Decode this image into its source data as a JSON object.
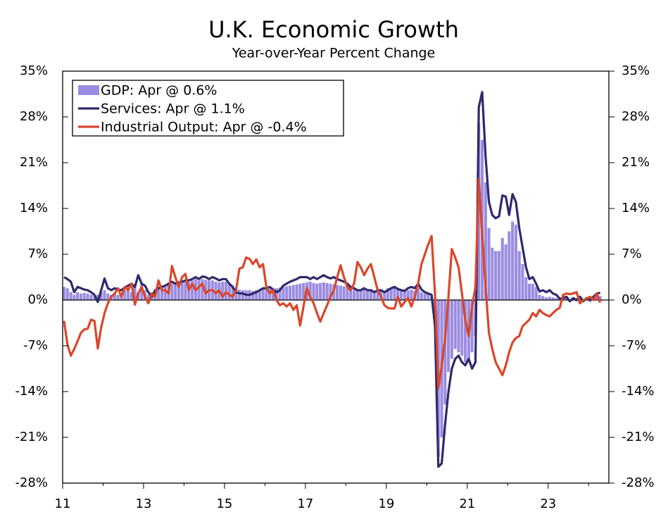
{
  "chart_data": {
    "type": "bar",
    "title": "U.K. Economic Growth",
    "subtitle": "Year-over-Year Percent Change",
    "x": [
      11,
      11.083,
      11.167,
      11.25,
      11.333,
      11.417,
      11.5,
      11.583,
      11.667,
      11.75,
      11.833,
      11.917,
      12,
      12.083,
      12.167,
      12.25,
      12.333,
      12.417,
      12.5,
      12.583,
      12.667,
      12.75,
      12.833,
      12.917,
      13,
      13.083,
      13.167,
      13.25,
      13.333,
      13.417,
      13.5,
      13.583,
      13.667,
      13.75,
      13.833,
      13.917,
      14,
      14.083,
      14.167,
      14.25,
      14.333,
      14.417,
      14.5,
      14.583,
      14.667,
      14.75,
      14.833,
      14.917,
      15,
      15.083,
      15.167,
      15.25,
      15.333,
      15.417,
      15.5,
      15.583,
      15.667,
      15.75,
      15.833,
      15.917,
      16,
      16.083,
      16.167,
      16.25,
      16.333,
      16.417,
      16.5,
      16.583,
      16.667,
      16.75,
      16.833,
      16.917,
      17,
      17.083,
      17.167,
      17.25,
      17.333,
      17.417,
      17.5,
      17.583,
      17.667,
      17.75,
      17.833,
      17.917,
      18,
      18.083,
      18.167,
      18.25,
      18.333,
      18.417,
      18.5,
      18.583,
      18.667,
      18.75,
      18.833,
      18.917,
      19,
      19.083,
      19.167,
      19.25,
      19.333,
      19.417,
      19.5,
      19.583,
      19.667,
      19.75,
      19.833,
      19.917,
      20,
      20.083,
      20.167,
      20.25,
      20.333,
      20.417,
      20.5,
      20.583,
      20.667,
      20.75,
      20.833,
      20.917,
      21,
      21.083,
      21.167,
      21.25,
      21.333,
      21.417,
      21.5,
      21.583,
      21.667,
      21.75,
      21.833,
      21.917,
      22,
      22.083,
      22.167,
      22.25,
      22.333,
      22.417,
      22.5,
      22.583,
      22.667,
      22.75,
      22.833,
      22.917,
      23,
      23.083,
      23.167,
      23.25,
      23.333,
      23.417,
      23.5,
      23.583,
      23.667,
      23.75,
      23.833,
      23.917,
      24,
      24.083,
      24.167,
      24.25
    ],
    "series": [
      {
        "name": "GDP: Apr @ 0.6%",
        "type": "bar",
        "color": "#9b8ce0",
        "values": [
          2.0,
          1.8,
          1.2,
          0.8,
          1.2,
          1.0,
          1.1,
          1.0,
          0.8,
          0.6,
          0.8,
          1.2,
          1.5,
          1.0,
          0.8,
          1.0,
          0.8,
          0.5,
          1.5,
          1.8,
          1.2,
          2.0,
          1.2,
          2.5,
          1.5,
          0.8,
          0.5,
          1.5,
          1.8,
          2.0,
          2.0,
          2.3,
          2.5,
          2.5,
          2.6,
          2.8,
          2.8,
          2.8,
          3.0,
          3.2,
          3.0,
          3.2,
          3.1,
          3.0,
          3.0,
          2.8,
          2.7,
          2.8,
          2.8,
          2.5,
          2.2,
          1.8,
          1.6,
          1.5,
          1.5,
          1.5,
          1.4,
          1.5,
          1.6,
          1.7,
          1.6,
          1.7,
          1.8,
          1.8,
          1.9,
          2.0,
          2.1,
          2.2,
          2.3,
          2.4,
          2.5,
          2.6,
          2.7,
          2.8,
          2.6,
          2.5,
          2.6,
          2.7,
          2.6,
          2.5,
          2.4,
          2.3,
          2.2,
          2.1,
          2.0,
          1.8,
          1.6,
          1.5,
          1.5,
          1.6,
          1.5,
          1.4,
          1.4,
          1.5,
          1.4,
          1.3,
          1.8,
          1.9,
          2.0,
          1.6,
          1.4,
          1.3,
          1.5,
          1.6,
          1.4,
          1.8,
          1.2,
          1.0,
          1.0,
          0.5,
          -4.0,
          -24.0,
          -21.0,
          -16.0,
          -11.0,
          -9.0,
          -7.5,
          -8.0,
          -8.5,
          -9.5,
          -9.5,
          -8.0,
          -5.5,
          27.0,
          24.5,
          18.0,
          11.0,
          8.0,
          7.5,
          7.5,
          9.5,
          8.5,
          10.5,
          12.0,
          11.5,
          7.5,
          5.5,
          3.5,
          2.5,
          2.5,
          2.0,
          0.8,
          0.6,
          0.4,
          0.5,
          0.4,
          0.3,
          0.2,
          0.3,
          0.5,
          0.1,
          0.2,
          -0.2,
          0.1,
          -0.2,
          -0.1,
          -0.3,
          0.0,
          0.5,
          0.6
        ]
      },
      {
        "name": "Services: Apr @ 1.1%",
        "type": "line",
        "color": "#2e2a6b",
        "values": [
          3.5,
          3.2,
          2.8,
          1.2,
          2.0,
          1.8,
          1.6,
          1.5,
          1.2,
          0.8,
          -0.3,
          1.5,
          3.3,
          1.8,
          1.5,
          1.8,
          1.6,
          1.5,
          1.9,
          2.2,
          2.5,
          2.0,
          3.8,
          2.5,
          2.2,
          1.2,
          0.5,
          1.5,
          1.8,
          2.0,
          2.2,
          2.5,
          2.8,
          2.5,
          2.7,
          2.8,
          3.0,
          3.0,
          3.2,
          3.5,
          3.2,
          3.6,
          3.5,
          3.2,
          3.5,
          3.3,
          3.0,
          3.2,
          3.2,
          2.5,
          2.0,
          1.2,
          1.0,
          1.0,
          0.8,
          0.8,
          1.0,
          1.2,
          1.5,
          1.8,
          1.8,
          2.0,
          1.6,
          1.2,
          1.5,
          2.2,
          2.5,
          2.8,
          3.0,
          3.2,
          3.5,
          3.5,
          3.5,
          3.2,
          3.5,
          3.2,
          3.5,
          3.8,
          3.5,
          3.3,
          3.5,
          3.2,
          3.0,
          2.8,
          2.5,
          2.0,
          1.8,
          1.5,
          1.5,
          1.8,
          1.5,
          1.5,
          1.2,
          1.5,
          1.5,
          1.2,
          1.5,
          1.8,
          2.0,
          1.7,
          1.5,
          1.4,
          1.8,
          2.0,
          1.8,
          2.5,
          1.6,
          1.2,
          1.0,
          0.8,
          -4.0,
          -25.5,
          -25.0,
          -19.0,
          -14.0,
          -10.5,
          -9.0,
          -8.5,
          -9.5,
          -10.0,
          -9.0,
          -10.5,
          -9.5,
          29.5,
          31.8,
          22.0,
          15.0,
          13.0,
          12.5,
          12.8,
          16.0,
          15.8,
          13.0,
          16.2,
          15.0,
          11.0,
          8.0,
          5.0,
          3.2,
          3.5,
          2.5,
          1.3,
          1.5,
          1.2,
          1.5,
          1.0,
          0.8,
          0.2,
          0.3,
          0.5,
          -0.2,
          0.3,
          0.0,
          0.5,
          -0.2,
          0.3,
          0.0,
          0.5,
          1.0,
          1.1
        ]
      },
      {
        "name": "Industrial Output: Apr @ -0.4%",
        "type": "line",
        "color": "#d9472b",
        "values": [
          -3.2,
          -6.8,
          -8.5,
          -7.5,
          -6.3,
          -5.0,
          -4.5,
          -4.4,
          -3.0,
          -3.2,
          -7.4,
          -4.2,
          -2.0,
          -0.5,
          0.5,
          1.0,
          1.8,
          0.5,
          2.0,
          1.5,
          2.5,
          -0.7,
          1.0,
          2.0,
          0.5,
          -0.5,
          1.0,
          0.5,
          3.0,
          1.5,
          1.5,
          1.0,
          5.2,
          3.5,
          2.0,
          3.5,
          4.0,
          1.5,
          2.5,
          1.5,
          2.0,
          2.5,
          1.0,
          1.5,
          1.5,
          1.0,
          1.5,
          0.5,
          1.2,
          0.8,
          0.5,
          1.5,
          4.8,
          5.0,
          6.5,
          6.3,
          5.5,
          6.2,
          5.0,
          5.5,
          2.0,
          1.0,
          1.5,
          0.0,
          -0.8,
          -0.5,
          -1.0,
          -0.5,
          -1.5,
          -0.8,
          -3.9,
          -1.0,
          1.8,
          0.5,
          -0.5,
          -2.0,
          -3.3,
          -2.0,
          -0.8,
          0.5,
          1.5,
          3.5,
          5.3,
          3.5,
          2.0,
          1.5,
          2.5,
          5.8,
          5.0,
          3.8,
          4.8,
          5.5,
          3.5,
          1.5,
          0.5,
          -0.8,
          -1.2,
          -1.3,
          -1.3,
          0.5,
          -1.0,
          -0.3,
          0.3,
          -1.0,
          0.5,
          2.5,
          5.5,
          7.0,
          8.5,
          9.8,
          1.0,
          -13.5,
          -10.0,
          -6.0,
          0.5,
          7.8,
          6.5,
          5.0,
          1.0,
          -3.0,
          -5.5,
          -1.0,
          2.0,
          18.5,
          10.0,
          2.0,
          -5.0,
          -7.5,
          -9.5,
          -10.5,
          -11.5,
          -10.0,
          -8.0,
          -6.5,
          -5.8,
          -5.5,
          -4.0,
          -3.5,
          -3.0,
          -2.0,
          -2.5,
          -1.5,
          -2.0,
          -2.3,
          -2.5,
          -2.0,
          -1.5,
          -1.2,
          0.8,
          1.0,
          0.9,
          1.0,
          1.2,
          -0.5,
          0.0,
          0.2,
          0.5,
          0.0,
          1.0,
          -0.4
        ]
      }
    ],
    "xlim": [
      11,
      24.5
    ],
    "xticks": [
      11,
      13,
      15,
      17,
      19,
      21,
      23
    ],
    "ylim": [
      -28,
      35
    ],
    "yticks": [
      {
        "value": -28,
        "label": "-28%"
      },
      {
        "value": -21,
        "label": "-21%"
      },
      {
        "value": -14,
        "label": "-14%"
      },
      {
        "value": -7,
        "label": "-7%"
      },
      {
        "value": 0,
        "label": "0%"
      },
      {
        "value": 7,
        "label": "7%"
      },
      {
        "value": 14,
        "label": "14%"
      },
      {
        "value": 21,
        "label": "21%"
      },
      {
        "value": 28,
        "label": "28%"
      },
      {
        "value": 35,
        "label": "35%"
      }
    ],
    "legend": "upper-left"
  }
}
